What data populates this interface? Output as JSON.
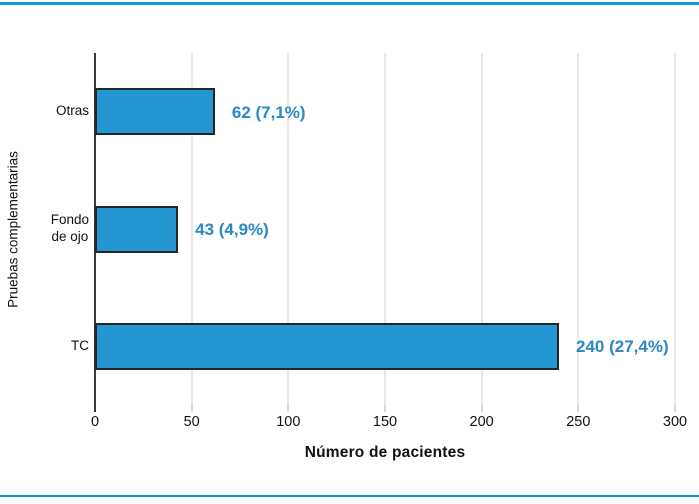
{
  "page": {
    "background": "#ffffff",
    "top_rule_color": "#0f9ad6",
    "bottom_rule_color": "#0f9ad6"
  },
  "chart_data": {
    "type": "bar",
    "orientation": "horizontal",
    "title": "",
    "xlabel": "Número de pacientes",
    "ylabel": "Pruebas complementarias",
    "categories": [
      "Otras",
      "Fondo de ojo",
      "TC"
    ],
    "category_display": [
      "Otras",
      "Fondo\nde ojo",
      "TC"
    ],
    "values": [
      62,
      43,
      240
    ],
    "value_labels": [
      "62 (7,1%)",
      "43 (4,9%)",
      "240 (27,4%)"
    ],
    "xlim": [
      0,
      300
    ],
    "xticks": [
      0,
      50,
      100,
      150,
      200,
      250,
      300
    ],
    "grid": "vertical",
    "legend": "none",
    "colors": {
      "bar_fill": "#2497d3",
      "bar_border": "#252525",
      "value_label": "#2b87c6",
      "gridline": "#e9e9e9",
      "axis_line": "#3a3a3a",
      "tick_minor": "#d9d9d9",
      "tick_zero": "#3a3a3a",
      "text": "#111111"
    }
  }
}
